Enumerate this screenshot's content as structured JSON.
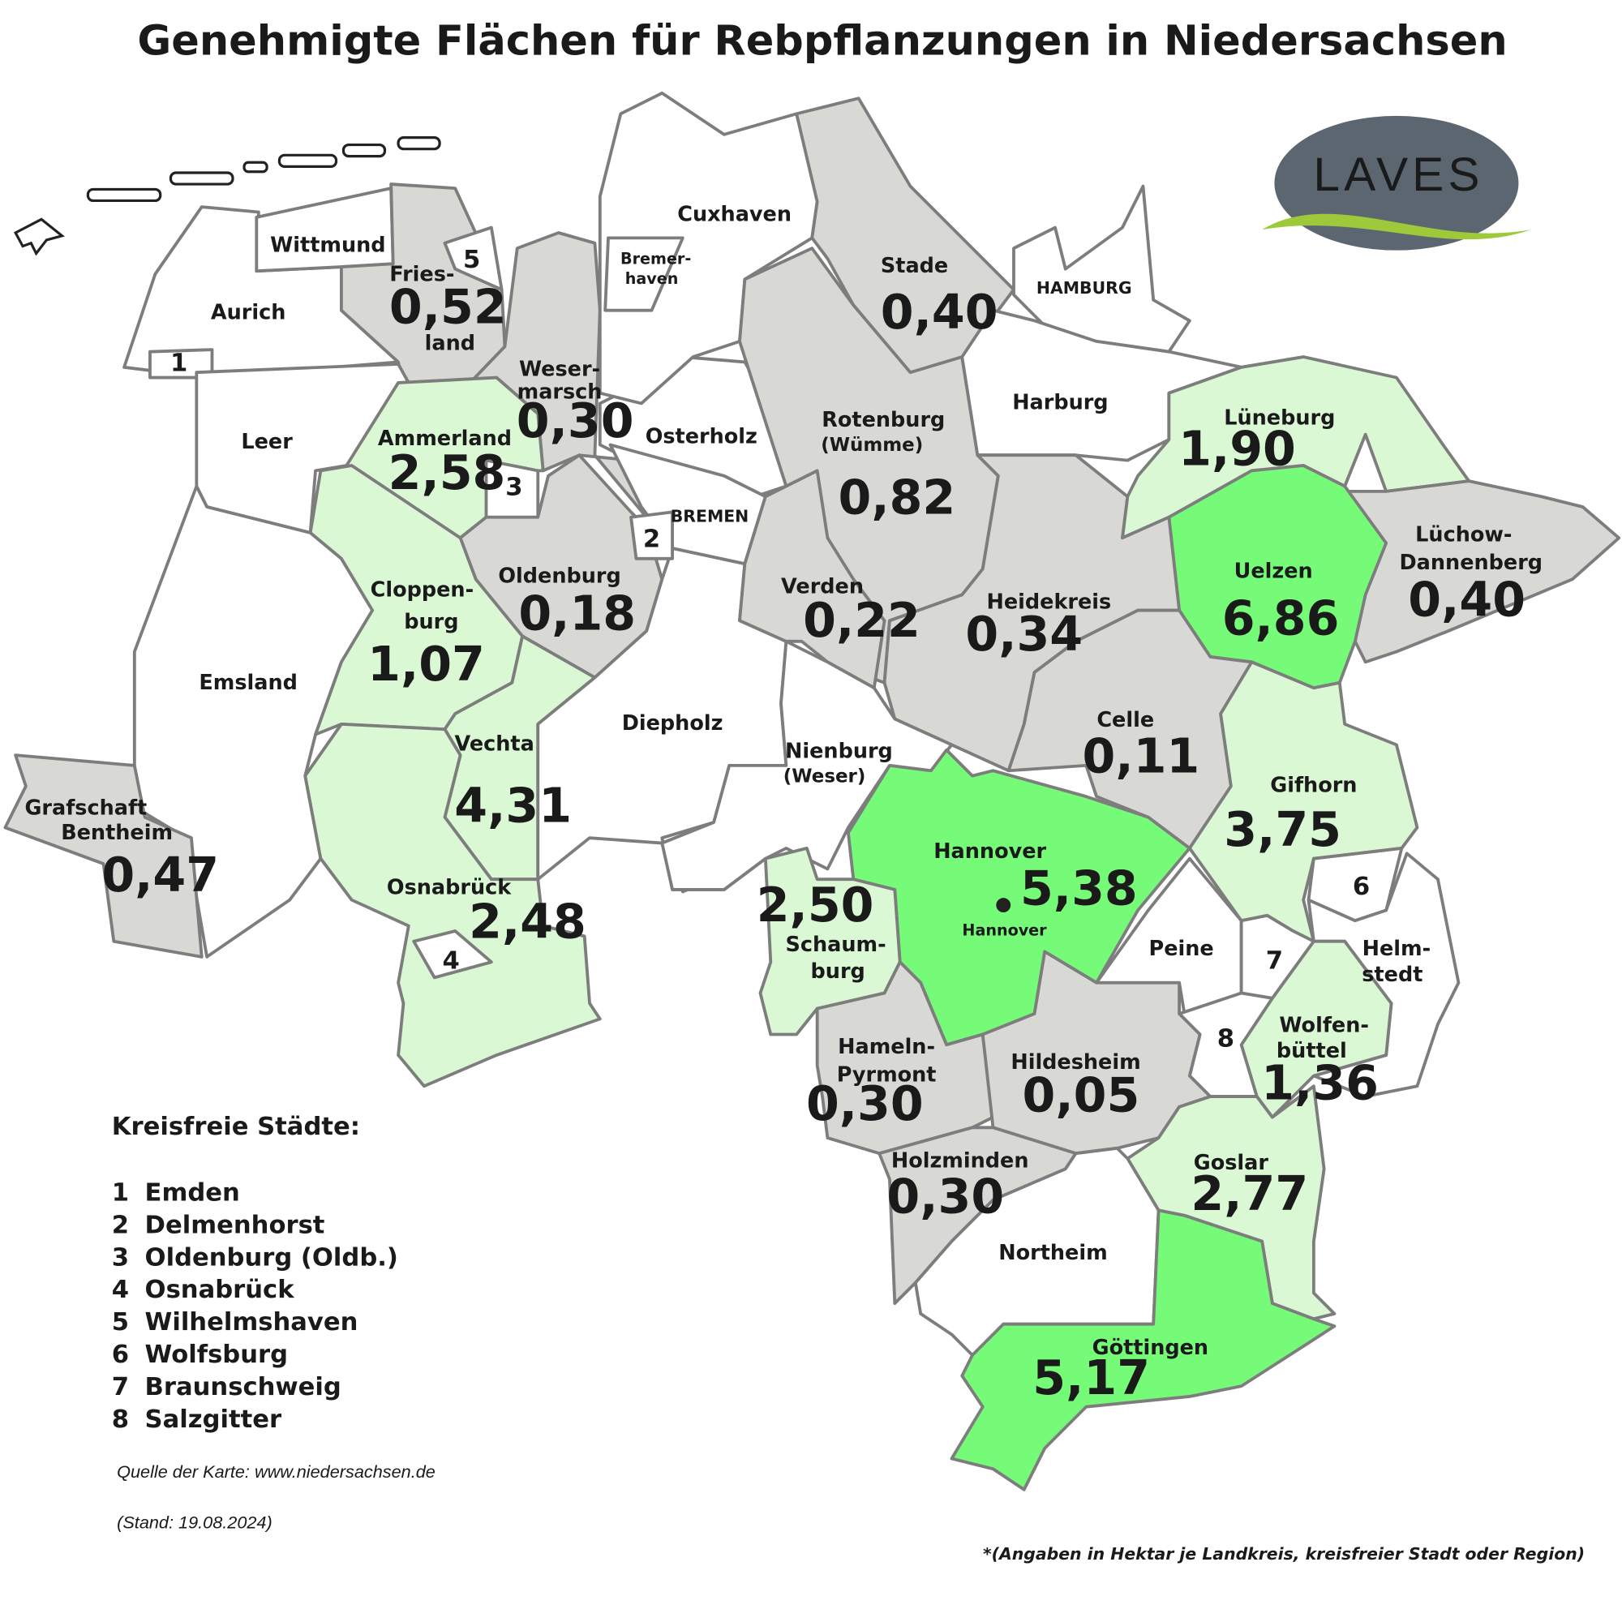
{
  "title": "Genehmigte Flächen für Rebpflanzungen in Niedersachsen",
  "logo": "LAVES",
  "regions": [
    {
      "name": [
        "Wittmund"
      ]
    },
    {
      "name": [
        "Fries-",
        "land"
      ],
      "value": "0,52"
    },
    {
      "name": [
        "Aurich"
      ]
    },
    {
      "name": [
        "Leer"
      ]
    },
    {
      "name": [
        "Weser-",
        "marsch"
      ],
      "value": "0,30"
    },
    {
      "name": [
        "Ammerland"
      ],
      "value": "2,58"
    },
    {
      "name": [
        "Osterholz"
      ]
    },
    {
      "name": [
        "Cuxhaven"
      ]
    },
    {
      "name": [
        "Stade"
      ],
      "value": "0,40"
    },
    {
      "name": [
        "Harburg"
      ]
    },
    {
      "name": [
        "Lüneburg"
      ],
      "value": "1,90"
    },
    {
      "name": [
        "Rotenburg",
        "(Wümme)"
      ],
      "value": "0,82"
    },
    {
      "name": [
        "Oldenburg"
      ],
      "value": "0,18"
    },
    {
      "name": [
        "Cloppen-",
        "burg"
      ],
      "value": "1,07"
    },
    {
      "name": [
        "Verden"
      ],
      "value": "0,22"
    },
    {
      "name": [
        "Heidekreis"
      ],
      "value": "0,34"
    },
    {
      "name": [
        "Uelzen"
      ],
      "value": "6,86"
    },
    {
      "name": [
        "Lüchow-",
        "Dannenberg"
      ],
      "value": "0,40"
    },
    {
      "name": [
        "Emsland"
      ]
    },
    {
      "name": [
        "Diepholz"
      ]
    },
    {
      "name": [
        "Nienburg",
        "(Weser)"
      ]
    },
    {
      "name": [
        "Celle"
      ],
      "value": "0,11"
    },
    {
      "name": [
        "Vechta"
      ],
      "value": "4,31"
    },
    {
      "name": [
        "Gifhorn"
      ],
      "value": "3,75"
    },
    {
      "name": [
        "Grafschaft",
        "Bentheim"
      ],
      "value": "0,47"
    },
    {
      "name": [
        "Osnabrück"
      ],
      "value": "2,48"
    },
    {
      "name": [
        "Hannover"
      ],
      "value": "5,38"
    },
    {
      "name": [
        "Schaum-",
        "burg"
      ],
      "value": "2,50"
    },
    {
      "name": [
        "Peine"
      ]
    },
    {
      "name": [
        "Helm-",
        "stedt"
      ]
    },
    {
      "name": [
        "Hameln-",
        "Pyrmont"
      ],
      "value": "0,30"
    },
    {
      "name": [
        "Hildesheim"
      ],
      "value": "0,05"
    },
    {
      "name": [
        "Wolfen-",
        "büttel"
      ],
      "value": "1,36"
    },
    {
      "name": [
        "Holzminden"
      ],
      "value": "0,30"
    },
    {
      "name": [
        "Goslar"
      ],
      "value": "2,77"
    },
    {
      "name": [
        "Northeim"
      ]
    },
    {
      "name": [
        "Göttingen"
      ],
      "value": "5,17"
    }
  ],
  "other_labels": [
    "HAMBURG",
    "BREMEN",
    "Bremer-",
    "haven",
    "Hannover"
  ],
  "legend": {
    "title": "Kreisfreie Städte:",
    "items": [
      {
        "number": "1",
        "name": "Emden"
      },
      {
        "number": "2",
        "name": "Delmenhorst"
      },
      {
        "number": "3",
        "name": "Oldenburg (Oldb.)"
      },
      {
        "number": "4",
        "name": "Osnabrück"
      },
      {
        "number": "5",
        "name": "Wilhelmshaven"
      },
      {
        "number": "6",
        "name": "Wolfsburg"
      },
      {
        "number": "7",
        "name": "Braunschweig"
      },
      {
        "number": "8",
        "name": "Salzgitter"
      }
    ]
  },
  "source": "Quelle der Karte: www.niedersachsen.de",
  "date": "(Stand: 19.08.2024)",
  "footnote": "*(Angaben in Hektar je Landkreis, kreisfreier Stadt oder Region)"
}
